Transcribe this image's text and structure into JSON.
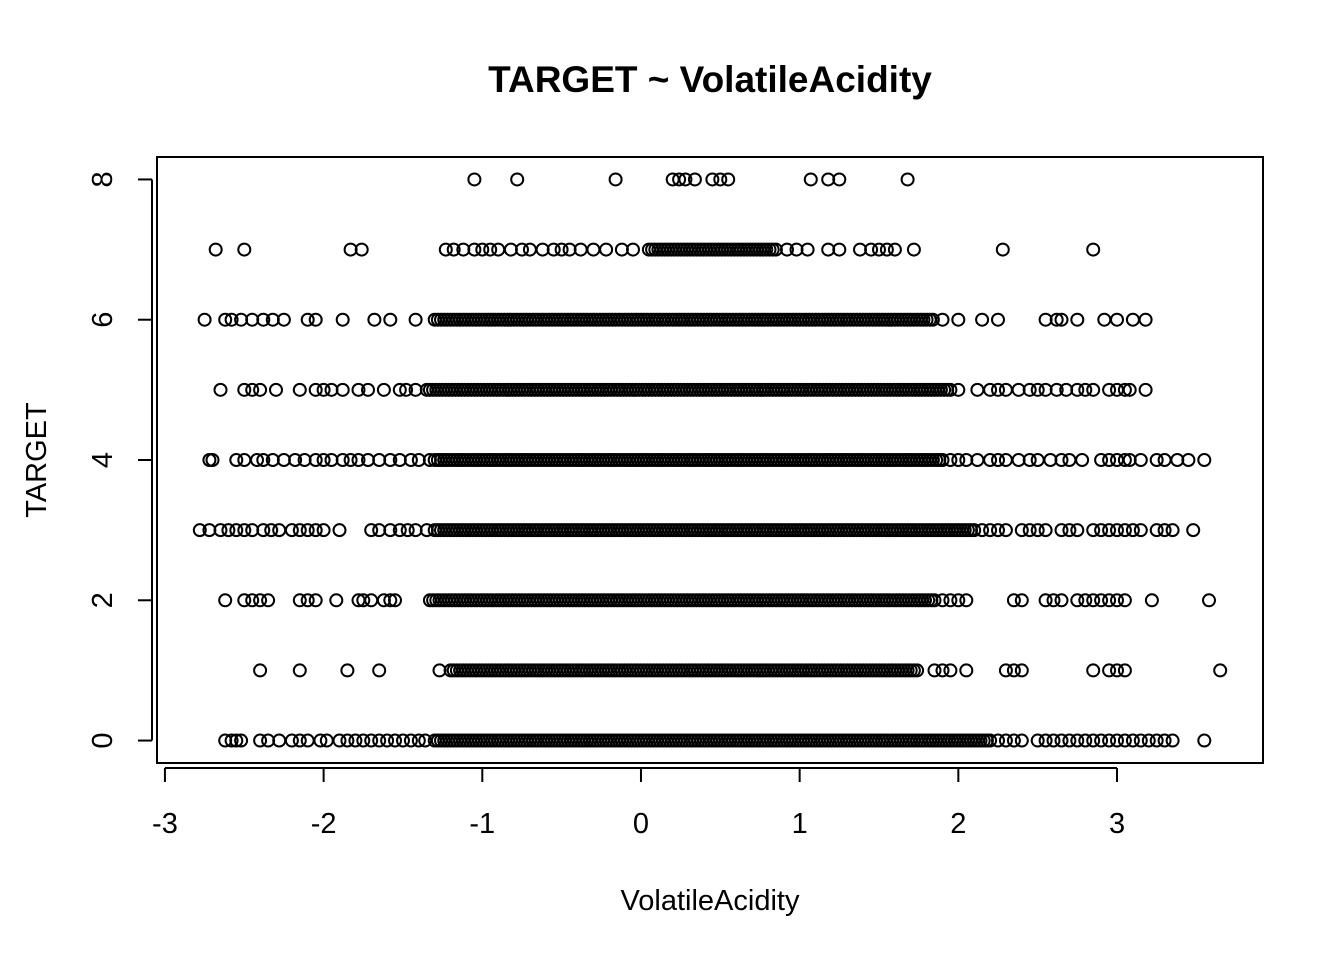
{
  "chart_data": {
    "type": "scatter",
    "title": "TARGET ~ VolatileAcidity",
    "xlabel": "VolatileAcidity",
    "ylabel": "TARGET",
    "xlim": [
      -3.05,
      3.92
    ],
    "ylim": [
      -0.32,
      8.32
    ],
    "x_ticks": [
      -3,
      -2,
      -1,
      0,
      1,
      2,
      3
    ],
    "y_ticks": [
      0,
      2,
      4,
      6,
      8
    ],
    "grid": false,
    "legend": "none",
    "marker": "open-circle",
    "series": [
      {
        "values_by_target": [
          {
            "y": 0,
            "x_dense_from": -1.3,
            "x_dense_to": 2.2,
            "x_sparse": [
              -2.62,
              -2.58,
              -2.55,
              -2.52,
              -2.4,
              -2.35,
              -2.28,
              -2.2,
              -2.15,
              -2.1,
              -2.02,
              -1.98,
              -1.9,
              -1.85,
              -1.8,
              -1.75,
              -1.7,
              -1.65,
              -1.6,
              -1.55,
              -1.5,
              -1.45,
              -1.4,
              -1.36,
              2.25,
              2.3,
              2.35,
              2.4,
              2.5,
              2.55,
              2.6,
              2.65,
              2.7,
              2.75,
              2.8,
              2.85,
              2.9,
              2.95,
              3.0,
              3.05,
              3.1,
              3.15,
              3.2,
              3.25,
              3.3,
              3.35,
              3.55
            ]
          },
          {
            "y": 1,
            "x_dense_from": -1.2,
            "x_dense_to": 1.75,
            "x_sparse": [
              -2.4,
              -2.15,
              -1.85,
              -1.65,
              -1.27,
              1.85,
              1.9,
              1.95,
              2.05,
              2.3,
              2.35,
              2.4,
              2.85,
              2.95,
              3.0,
              3.05,
              3.65
            ]
          },
          {
            "y": 2,
            "x_dense_from": -1.33,
            "x_dense_to": 1.85,
            "x_sparse": [
              -2.62,
              -2.5,
              -2.45,
              -2.4,
              -2.35,
              -2.15,
              -2.1,
              -2.05,
              -1.92,
              -1.78,
              -1.75,
              -1.7,
              -1.62,
              -1.58,
              -1.55,
              1.9,
              1.95,
              2.0,
              2.05,
              2.35,
              2.4,
              2.55,
              2.6,
              2.65,
              2.75,
              2.8,
              2.85,
              2.9,
              2.95,
              3.0,
              3.05,
              3.22,
              3.58
            ]
          },
          {
            "y": 3,
            "x_dense_from": -1.3,
            "x_dense_to": 2.1,
            "x_sparse": [
              -2.78,
              -2.72,
              -2.65,
              -2.6,
              -2.55,
              -2.5,
              -2.45,
              -2.38,
              -2.33,
              -2.28,
              -2.2,
              -2.15,
              -2.1,
              -2.05,
              -2.0,
              -1.9,
              -1.7,
              -1.65,
              -1.58,
              -1.52,
              -1.47,
              -1.42,
              -1.35,
              2.15,
              2.2,
              2.25,
              2.3,
              2.4,
              2.45,
              2.5,
              2.55,
              2.65,
              2.7,
              2.75,
              2.85,
              2.9,
              2.95,
              3.0,
              3.05,
              3.1,
              3.15,
              3.25,
              3.3,
              3.35,
              3.48
            ]
          },
          {
            "y": 4,
            "x_dense_from": -1.3,
            "x_dense_to": 1.9,
            "x_sparse": [
              -2.72,
              -2.7,
              -2.55,
              -2.5,
              -2.42,
              -2.38,
              -2.32,
              -2.25,
              -2.18,
              -2.12,
              -2.05,
              -2.0,
              -1.95,
              -1.88,
              -1.83,
              -1.78,
              -1.72,
              -1.65,
              -1.58,
              -1.52,
              -1.45,
              -1.4,
              -1.33,
              1.95,
              2.0,
              2.05,
              2.12,
              2.2,
              2.25,
              2.3,
              2.38,
              2.45,
              2.5,
              2.58,
              2.65,
              2.7,
              2.78,
              2.9,
              2.95,
              3.0,
              3.05,
              3.08,
              3.15,
              3.25,
              3.3,
              3.38,
              3.45,
              3.55
            ]
          },
          {
            "y": 5,
            "x_dense_from": -1.35,
            "x_dense_to": 1.95,
            "x_sparse": [
              -2.65,
              -2.5,
              -2.45,
              -2.4,
              -2.3,
              -2.15,
              -2.05,
              -2.0,
              -1.95,
              -1.88,
              -1.78,
              -1.72,
              -1.62,
              -1.52,
              -1.48,
              -1.42,
              2.0,
              2.12,
              2.2,
              2.25,
              2.3,
              2.38,
              2.45,
              2.5,
              2.55,
              2.62,
              2.68,
              2.75,
              2.8,
              2.85,
              2.95,
              3.0,
              3.05,
              3.08,
              3.18
            ]
          },
          {
            "y": 6,
            "x_dense_from": -1.3,
            "x_dense_to": 1.85,
            "x_sparse": [
              -2.75,
              -2.62,
              -2.58,
              -2.52,
              -2.45,
              -2.38,
              -2.32,
              -2.25,
              -2.1,
              -2.05,
              -1.88,
              -1.68,
              -1.58,
              -1.42,
              1.9,
              2.0,
              2.15,
              2.25,
              2.55,
              2.62,
              2.65,
              2.75,
              2.92,
              3.0,
              3.1,
              3.18
            ]
          },
          {
            "y": 7,
            "x_dense_from": 0.05,
            "x_dense_to": 0.85,
            "x_sparse": [
              -2.68,
              -2.5,
              -1.83,
              -1.76,
              -1.23,
              -1.18,
              -1.12,
              -1.05,
              -1.0,
              -0.95,
              -0.9,
              -0.82,
              -0.75,
              -0.7,
              -0.62,
              -0.55,
              -0.5,
              -0.45,
              -0.38,
              -0.3,
              -0.22,
              -0.12,
              -0.05,
              0.92,
              0.98,
              1.05,
              1.18,
              1.25,
              1.38,
              1.45,
              1.5,
              1.55,
              1.6,
              1.72,
              2.28,
              2.85
            ]
          },
          {
            "y": 8,
            "x_dense_from": null,
            "x_dense_to": null,
            "x_sparse": [
              -1.05,
              -0.78,
              -0.16,
              0.2,
              0.24,
              0.28,
              0.34,
              0.45,
              0.5,
              0.55,
              1.07,
              1.18,
              1.25,
              1.68
            ]
          }
        ]
      }
    ]
  }
}
